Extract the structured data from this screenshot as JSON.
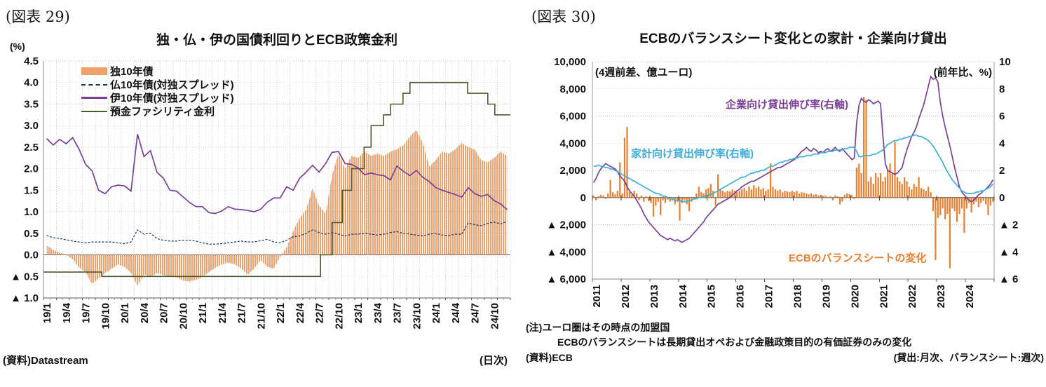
{
  "chart_data": [
    {
      "id": "fig29",
      "type": "area-line-combo",
      "figure_label": "(図表 29)",
      "title": "独・仏・伊の国債利回りとECB政策金利",
      "unit_label": "(%)",
      "source": "(資料)Datastream",
      "frequency_label": "(日次)",
      "y_axis": {
        "min": -1.0,
        "max": 4.5,
        "step": 0.5,
        "tick_labels": [
          "4.5",
          "4.0",
          "3.5",
          "3.0",
          "2.5",
          "2.0",
          "1.5",
          "1.0",
          "0.5",
          "0.0",
          "▲ 0.5",
          "▲ 1.0"
        ]
      },
      "x_axis": {
        "start_year": 2019,
        "end_year": 2025,
        "label_rotation": -90,
        "tick_labels": [
          "19/1",
          "19/4",
          "19/7",
          "19/10",
          "20/1",
          "20/4",
          "20/7",
          "20/10",
          "21/1",
          "21/4",
          "21/7",
          "21/10",
          "22/1",
          "22/4",
          "22/7",
          "22/10",
          "23/1",
          "23/4",
          "23/7",
          "23/10",
          "24/1",
          "24/4",
          "24/7",
          "24/10"
        ]
      },
      "legend": [
        {
          "label": "独10年債",
          "type": "area",
          "color": "#F0A26E"
        },
        {
          "label": "仏10年債(対独スプレッド)",
          "type": "dashed-line",
          "color": "#17365D"
        },
        {
          "label": "伊10年債(対独スプレッド)",
          "type": "line",
          "color": "#7A3F96"
        },
        {
          "label": "預金ファシリティ金利",
          "type": "line",
          "color": "#4A5B2B"
        }
      ],
      "grid_color": "#c9c9c9",
      "series": {
        "german_10y_monthly": [
          0.22,
          0.12,
          0.05,
          0.0,
          -0.1,
          -0.3,
          -0.4,
          -0.68,
          -0.55,
          -0.42,
          -0.33,
          -0.22,
          -0.28,
          -0.42,
          -0.72,
          -0.45,
          -0.52,
          -0.42,
          -0.48,
          -0.5,
          -0.52,
          -0.6,
          -0.62,
          -0.58,
          -0.52,
          -0.4,
          -0.3,
          -0.22,
          -0.18,
          -0.22,
          -0.32,
          -0.46,
          -0.32,
          -0.12,
          -0.28,
          -0.32,
          -0.05,
          0.18,
          0.55,
          0.85,
          1.05,
          1.55,
          1.15,
          0.95,
          1.85,
          2.35,
          2.0,
          2.3,
          2.25,
          2.4,
          2.3,
          2.35,
          2.3,
          2.4,
          2.45,
          2.55,
          2.75,
          2.9,
          2.6,
          2.05,
          2.2,
          2.4,
          2.35,
          2.45,
          2.6,
          2.5,
          2.45,
          2.2,
          2.15,
          2.25,
          2.4,
          2.3
        ],
        "french_spread_monthly": [
          0.45,
          0.4,
          0.38,
          0.35,
          0.32,
          0.3,
          0.28,
          0.3,
          0.3,
          0.3,
          0.3,
          0.28,
          0.26,
          0.3,
          0.58,
          0.48,
          0.5,
          0.38,
          0.34,
          0.32,
          0.32,
          0.34,
          0.34,
          0.32,
          0.28,
          0.25,
          0.25,
          0.26,
          0.28,
          0.3,
          0.32,
          0.3,
          0.3,
          0.33,
          0.36,
          0.3,
          0.28,
          0.34,
          0.42,
          0.44,
          0.5,
          0.58,
          0.52,
          0.48,
          0.52,
          0.48,
          0.44,
          0.48,
          0.48,
          0.5,
          0.48,
          0.46,
          0.48,
          0.52,
          0.54,
          0.5,
          0.48,
          0.46,
          0.44,
          0.48,
          0.5,
          0.46,
          0.45,
          0.48,
          0.48,
          0.74,
          0.7,
          0.68,
          0.73,
          0.76,
          0.72,
          0.78
        ],
        "italian_spread_monthly": [
          2.7,
          2.55,
          2.68,
          2.58,
          2.72,
          2.45,
          2.1,
          1.95,
          1.5,
          1.42,
          1.58,
          1.62,
          1.6,
          1.48,
          2.8,
          2.28,
          2.42,
          1.92,
          1.78,
          1.5,
          1.48,
          1.35,
          1.22,
          1.12,
          1.12,
          0.98,
          0.96,
          1.02,
          1.12,
          1.06,
          1.05,
          1.03,
          1.0,
          1.06,
          1.22,
          1.32,
          1.32,
          1.58,
          1.5,
          1.78,
          1.92,
          2.08,
          1.92,
          2.12,
          2.38,
          2.4,
          2.12,
          2.1,
          2.02,
          1.86,
          1.9,
          1.86,
          1.84,
          1.74,
          2.06,
          1.94,
          1.84,
          1.96,
          1.8,
          1.7,
          1.56,
          1.5,
          1.45,
          1.4,
          1.34,
          1.56,
          1.42,
          1.36,
          1.4,
          1.26,
          1.18,
          1.05
        ],
        "deposit_rate_steps": [
          [
            2019.0,
            -0.4
          ],
          [
            2019.75,
            -0.5
          ],
          [
            2022.56,
            0.0
          ],
          [
            2022.71,
            0.75
          ],
          [
            2022.84,
            1.5
          ],
          [
            2022.96,
            2.0
          ],
          [
            2023.12,
            2.5
          ],
          [
            2023.21,
            3.0
          ],
          [
            2023.37,
            3.25
          ],
          [
            2023.46,
            3.5
          ],
          [
            2023.62,
            3.75
          ],
          [
            2023.71,
            4.0
          ],
          [
            2024.45,
            3.75
          ],
          [
            2024.71,
            3.5
          ],
          [
            2024.8,
            3.25
          ]
        ]
      }
    },
    {
      "id": "fig30",
      "type": "bar-line-combo",
      "figure_label": "(図表 30)",
      "title": "ECBのバランスシート変化との家計・企業向け貸出",
      "left_axis": {
        "unit_label": "(4週前差、億ユーロ)",
        "min": -6000,
        "max": 10000,
        "step": 2000,
        "tick_labels": [
          "10,000",
          "8,000",
          "6,000",
          "4,000",
          "2,000",
          "0",
          "▲ 2,000",
          "▲ 4,000",
          "▲ 6,000"
        ]
      },
      "right_axis": {
        "unit_label": "(前年比、%)",
        "min": -6,
        "max": 10,
        "step": 2,
        "tick_labels": [
          "10",
          "8",
          "6",
          "4",
          "2",
          "0",
          "▲ 2",
          "▲ 4",
          "▲ 6"
        ]
      },
      "x_axis": {
        "start_year": 2011,
        "end_year": 2025,
        "label_rotation": -90,
        "tick_labels": [
          "2011",
          "2012",
          "2013",
          "2014",
          "2015",
          "2016",
          "2017",
          "2018",
          "2019",
          "2020",
          "2021",
          "2022",
          "2023",
          "2024"
        ]
      },
      "annotations": [
        {
          "text": "企業向け貸出伸び率(右軸)",
          "color": "#7A3F96"
        },
        {
          "text": "家計向け貸出伸び率(右軸)",
          "color": "#3FAEDB"
        },
        {
          "text": "ECBのバランスシートの変化",
          "color": "#E87E2E"
        }
      ],
      "notes": [
        "(注)ユーロ圏はその時点の加盟国",
        "ECBのバランスシートは長期貸出オペおよび金融政策目的の有価証券のみの変化"
      ],
      "source": "(資料)ECB",
      "frequency_label": "(貸出:月次、バランスシート:週次)",
      "grid_color": "#b5b5b5",
      "series": {
        "balance_sheet_change_monthly": [
          150,
          -200,
          100,
          200,
          150,
          -100,
          300,
          1300,
          400,
          250,
          500,
          2600,
          300,
          4400,
          5200,
          400,
          200,
          500,
          300,
          -200,
          150,
          -300,
          100,
          -250,
          -400,
          -1400,
          -600,
          -300,
          -1300,
          -200,
          -400,
          -150,
          -300,
          -200,
          -500,
          -300,
          -1700,
          -400,
          -200,
          -500,
          -1000,
          -300,
          -150,
          300,
          800,
          400,
          300,
          600,
          700,
          1000,
          500,
          -600,
          1700,
          600,
          500,
          400,
          500,
          450,
          600,
          500,
          400,
          500,
          600,
          700,
          500,
          800,
          600,
          900,
          700,
          800,
          600,
          700,
          500,
          600,
          2500,
          800,
          600,
          500,
          600,
          400,
          500,
          450,
          400,
          500,
          400,
          500,
          300,
          400,
          350,
          300,
          250,
          300,
          200,
          250,
          150,
          200,
          100,
          150,
          50,
          100,
          -200,
          150,
          100,
          -500,
          -300,
          200,
          300,
          250,
          200,
          -100,
          2200,
          2500,
          1800,
          7400,
          7200,
          1200,
          1500,
          1000,
          1800,
          1500,
          1800,
          1200,
          1500,
          2000,
          2500,
          1800,
          4100,
          1500,
          1200,
          1000,
          1500,
          1200,
          800,
          600,
          1000,
          800,
          1500,
          700,
          600,
          500,
          800,
          400,
          -1000,
          -4600,
          -1500,
          -1300,
          -800,
          -1600,
          -1200,
          -5200,
          -800,
          -1000,
          -1800,
          -1200,
          -800,
          -2600,
          -800,
          -400,
          -1100,
          -500,
          -300,
          -700,
          -400,
          -250,
          -500,
          -1300,
          -600,
          -300
        ],
        "corporate_loans_yoy_monthly": [
          1.1,
          1.4,
          1.8,
          2.1,
          2.3,
          2.5,
          2.4,
          2.3,
          2.2,
          2.1,
          1.9,
          1.6,
          1.4,
          1.2,
          0.8,
          0.5,
          0.3,
          0.1,
          -0.2,
          -0.5,
          -0.8,
          -1.2,
          -1.5,
          -1.8,
          -2.0,
          -2.2,
          -2.4,
          -2.6,
          -2.8,
          -2.9,
          -3.0,
          -3.1,
          -3.0,
          -3.1,
          -3.2,
          -3.1,
          -3.2,
          -3.3,
          -3.2,
          -3.1,
          -3.0,
          -2.8,
          -2.6,
          -2.4,
          -2.2,
          -2.0,
          -1.8,
          -1.5,
          -1.3,
          -1.1,
          -0.9,
          -0.7,
          -0.5,
          -0.4,
          -0.3,
          -0.2,
          -0.1,
          0.0,
          0.2,
          0.3,
          0.5,
          0.6,
          0.8,
          0.9,
          1.0,
          1.1,
          1.2,
          1.2,
          1.3,
          1.4,
          1.5,
          1.6,
          1.7,
          1.8,
          1.9,
          2.0,
          2.1,
          2.2,
          2.2,
          2.3,
          2.4,
          2.5,
          2.6,
          2.7,
          2.8,
          3.0,
          3.2,
          3.4,
          3.5,
          3.7,
          3.5,
          3.4,
          3.6,
          3.5,
          3.3,
          3.4,
          3.3,
          3.5,
          3.6,
          3.4,
          3.5,
          3.7,
          3.5,
          3.4,
          3.6,
          3.4,
          3.2,
          3.0,
          2.8,
          2.9,
          5.5,
          6.8,
          7.3,
          7.1,
          7.0,
          7.2,
          7.1,
          6.9,
          7.0,
          7.1,
          6.9,
          4.5,
          2.5,
          2.0,
          1.9,
          1.8,
          1.7,
          1.8,
          2.0,
          2.2,
          2.9,
          3.5,
          4.0,
          4.5,
          4.8,
          5.2,
          5.8,
          6.3,
          6.8,
          7.5,
          8.2,
          8.9,
          8.7,
          8.8,
          8.5,
          7.0,
          6.0,
          5.2,
          4.5,
          3.8,
          3.0,
          2.2,
          1.5,
          0.8,
          0.4,
          0.2,
          0.0,
          -0.2,
          -0.3,
          -0.2,
          0.0,
          0.2,
          0.3,
          0.5,
          0.6,
          0.8,
          1.0,
          1.3
        ],
        "household_loans_yoy_monthly": [
          2.3,
          2.3,
          2.4,
          2.3,
          2.3,
          2.2,
          2.2,
          2.1,
          2.1,
          2.0,
          1.9,
          1.8,
          1.7,
          1.6,
          1.5,
          1.4,
          1.3,
          1.2,
          1.1,
          1.0,
          0.9,
          0.8,
          0.7,
          0.6,
          0.5,
          0.4,
          0.3,
          0.3,
          0.2,
          0.1,
          0.1,
          0.0,
          -0.1,
          -0.1,
          -0.2,
          -0.2,
          -0.2,
          -0.3,
          -0.3,
          -0.3,
          -0.2,
          -0.2,
          -0.1,
          -0.1,
          0.0,
          0.0,
          0.1,
          0.1,
          0.2,
          0.2,
          0.3,
          0.4,
          0.5,
          0.6,
          0.7,
          0.8,
          0.9,
          1.0,
          1.1,
          1.2,
          1.3,
          1.4,
          1.5,
          1.5,
          1.6,
          1.7,
          1.8,
          1.8,
          1.9,
          1.9,
          2.0,
          2.0,
          2.1,
          2.2,
          2.3,
          2.3,
          2.4,
          2.5,
          2.6,
          2.6,
          2.7,
          2.7,
          2.8,
          2.8,
          2.9,
          2.9,
          3.0,
          3.0,
          3.0,
          3.1,
          3.1,
          3.1,
          3.2,
          3.2,
          3.2,
          3.3,
          3.3,
          3.3,
          3.4,
          3.4,
          3.4,
          3.5,
          3.5,
          3.5,
          3.5,
          3.6,
          3.6,
          3.7,
          3.7,
          3.7,
          3.4,
          3.0,
          3.0,
          3.1,
          3.1,
          3.1,
          3.1,
          3.2,
          3.2,
          3.3,
          3.4,
          3.5,
          3.7,
          3.9,
          4.0,
          4.1,
          4.2,
          4.2,
          4.3,
          4.3,
          4.4,
          4.4,
          4.5,
          4.5,
          4.6,
          4.6,
          4.5,
          4.5,
          4.4,
          4.3,
          4.2,
          4.0,
          3.8,
          3.5,
          3.2,
          2.9,
          2.6,
          2.2,
          1.9,
          1.6,
          1.3,
          1.1,
          0.9,
          0.7,
          0.5,
          0.4,
          0.3,
          0.3,
          0.3,
          0.3,
          0.4,
          0.4,
          0.5,
          0.5,
          0.6,
          0.7,
          0.8,
          1.0
        ]
      }
    }
  ]
}
